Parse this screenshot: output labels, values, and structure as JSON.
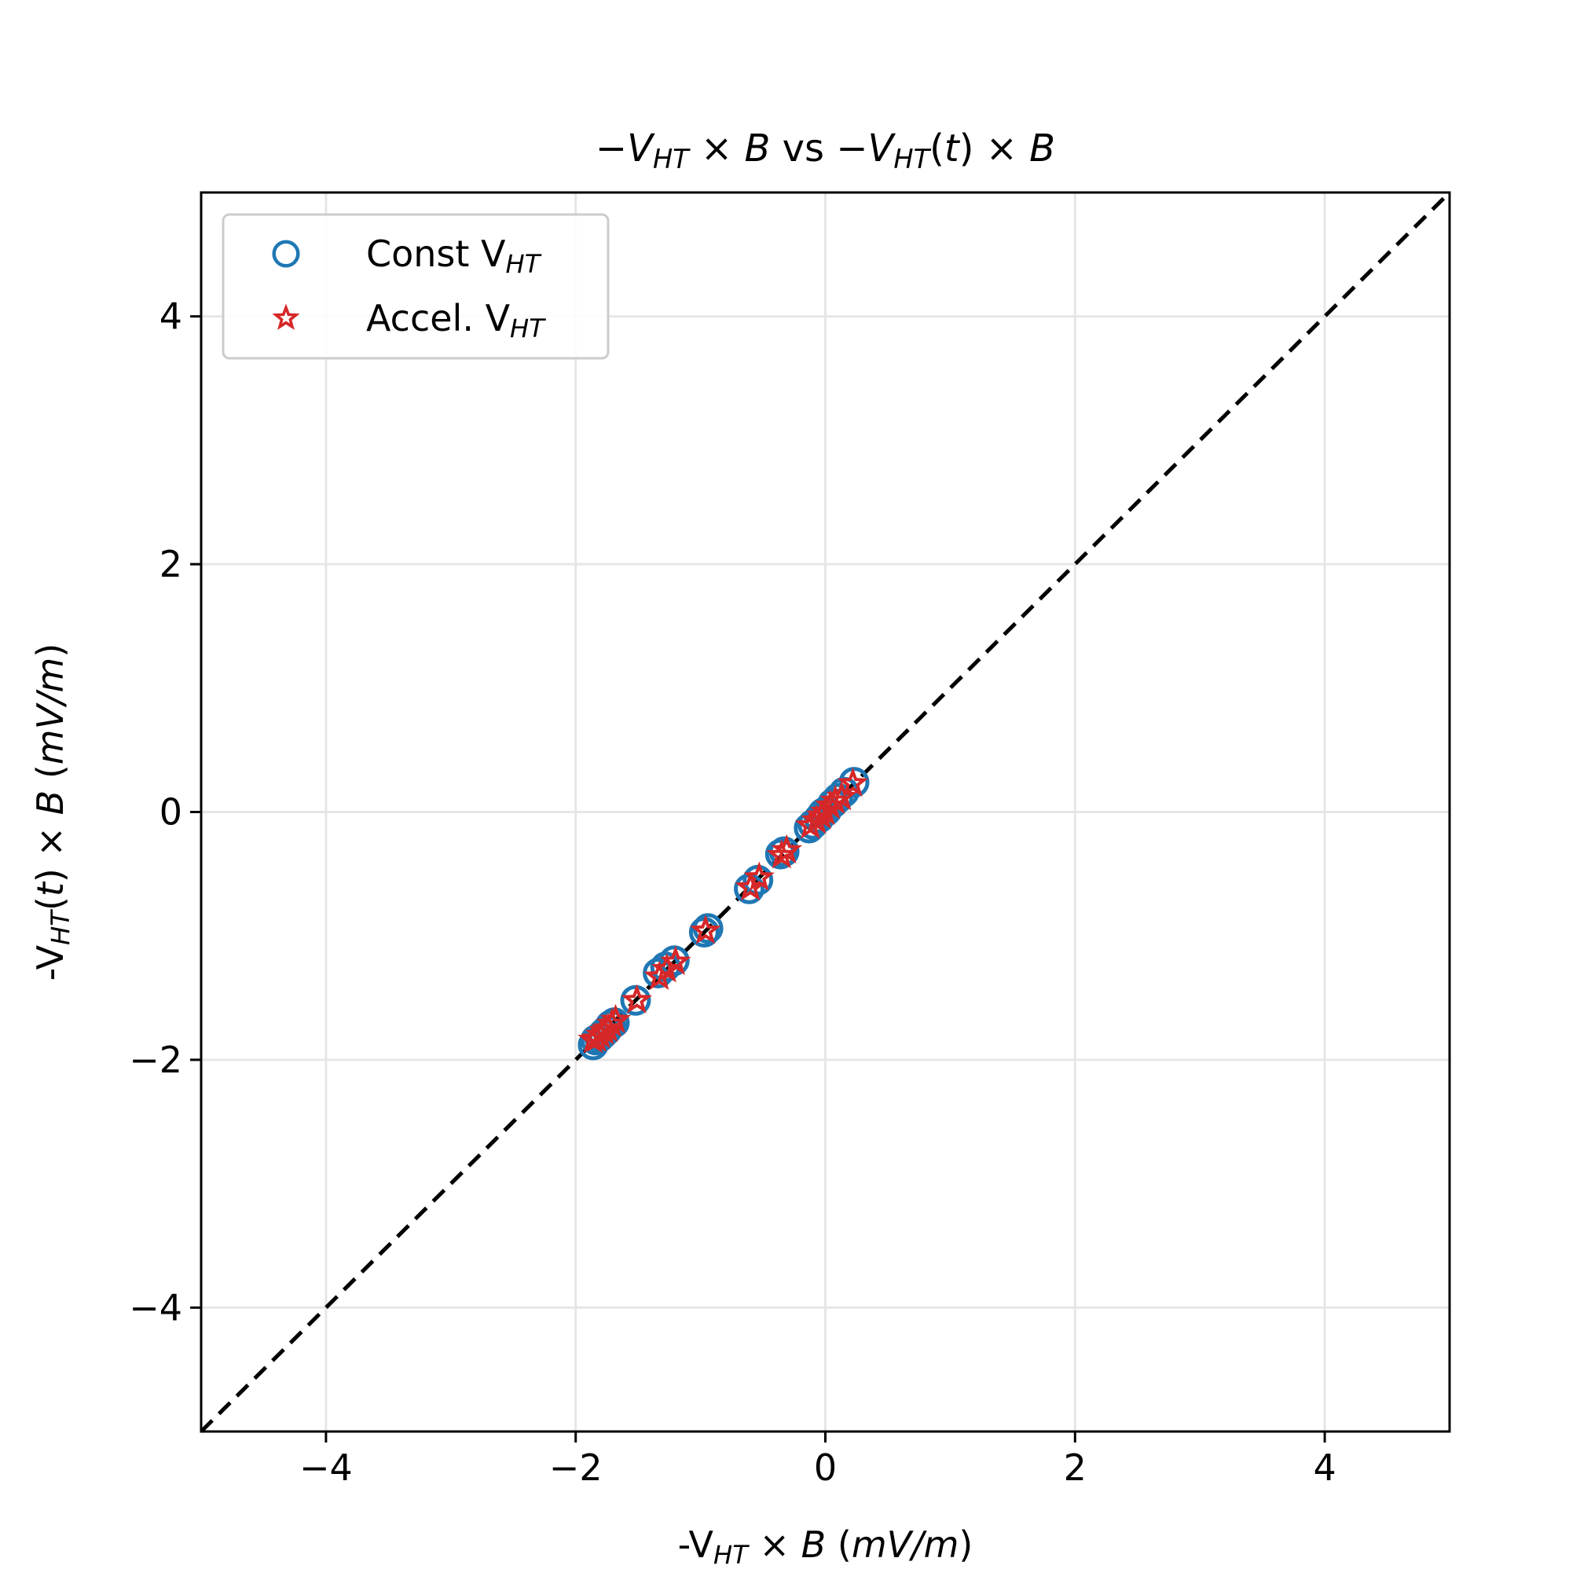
{
  "chart_data": {
    "type": "scatter",
    "title": {
      "parts": [
        {
          "t": "−",
          "i": false
        },
        {
          "t": "V",
          "i": true
        },
        {
          "t": "HT",
          "i": true,
          "sub": true
        },
        {
          "t": " × ",
          "i": false
        },
        {
          "t": "B",
          "i": true
        },
        {
          "t": " vs ",
          "i": false
        },
        {
          "t": "−",
          "i": false
        },
        {
          "t": "V",
          "i": true
        },
        {
          "t": "HT",
          "i": true,
          "sub": true
        },
        {
          "t": "(",
          "i": false
        },
        {
          "t": "t",
          "i": true
        },
        {
          "t": ") × ",
          "i": false
        },
        {
          "t": "B",
          "i": true
        }
      ]
    },
    "xlabel": {
      "parts": [
        {
          "t": "-V",
          "i": false
        },
        {
          "t": "HT",
          "i": true,
          "sub": true
        },
        {
          "t": " × ",
          "i": false
        },
        {
          "t": "B",
          "i": true
        },
        {
          "t": " (",
          "i": false
        },
        {
          "t": "mV/m",
          "i": true
        },
        {
          "t": ")",
          "i": false
        }
      ]
    },
    "ylabel": {
      "parts": [
        {
          "t": "-V",
          "i": false
        },
        {
          "t": "HT",
          "i": true,
          "sub": true
        },
        {
          "t": "(",
          "i": false
        },
        {
          "t": "t",
          "i": true
        },
        {
          "t": ") × ",
          "i": false
        },
        {
          "t": "B",
          "i": true
        },
        {
          "t": " (",
          "i": false
        },
        {
          "t": "mV/m",
          "i": true
        },
        {
          "t": ")",
          "i": false
        }
      ]
    },
    "xlim": [
      -5,
      5
    ],
    "ylim": [
      -5,
      5
    ],
    "xticks": [
      -4,
      -2,
      0,
      2,
      4
    ],
    "yticks": [
      -4,
      -2,
      0,
      2,
      4
    ],
    "xtick_labels": [
      "−4",
      "−2",
      "0",
      "2",
      "4"
    ],
    "ytick_labels": [
      "−4",
      "−2",
      "0",
      "2",
      "4"
    ],
    "grid": true,
    "legend": {
      "placement": "top-left"
    },
    "reference_line": {
      "type": "y=x",
      "style": "dashed",
      "color": "#000000"
    },
    "series": [
      {
        "name": "Const V",
        "name_sub": "HT",
        "marker": "circle-open",
        "color": "#1f77b4",
        "points": [
          [
            -1.86,
            -1.88
          ],
          [
            -1.84,
            -1.84
          ],
          [
            -1.81,
            -1.82
          ],
          [
            -1.78,
            -1.79
          ],
          [
            -1.75,
            -1.76
          ],
          [
            -1.72,
            -1.72
          ],
          [
            -1.69,
            -1.7
          ],
          [
            -1.52,
            -1.52
          ],
          [
            -1.34,
            -1.3
          ],
          [
            -1.28,
            -1.25
          ],
          [
            -1.21,
            -1.2
          ],
          [
            -0.97,
            -0.97
          ],
          [
            -0.94,
            -0.94
          ],
          [
            -0.61,
            -0.62
          ],
          [
            -0.54,
            -0.55
          ],
          [
            -0.36,
            -0.34
          ],
          [
            -0.33,
            -0.32
          ],
          [
            -0.13,
            -0.13
          ],
          [
            -0.1,
            -0.1
          ],
          [
            -0.05,
            -0.05
          ],
          [
            -0.02,
            -0.01
          ],
          [
            0.01,
            0.01
          ],
          [
            0.06,
            0.07
          ],
          [
            0.1,
            0.11
          ],
          [
            0.15,
            0.16
          ],
          [
            0.23,
            0.24
          ]
        ]
      },
      {
        "name": "Accel. V",
        "name_sub": "HT",
        "marker": "star-open",
        "color": "#d62728",
        "points": [
          [
            -1.86,
            -1.84
          ],
          [
            -1.83,
            -1.83
          ],
          [
            -1.8,
            -1.8
          ],
          [
            -1.77,
            -1.77
          ],
          [
            -1.74,
            -1.75
          ],
          [
            -1.71,
            -1.71
          ],
          [
            -1.68,
            -1.68
          ],
          [
            -1.51,
            -1.52
          ],
          [
            -1.33,
            -1.33
          ],
          [
            -1.27,
            -1.27
          ],
          [
            -1.2,
            -1.21
          ],
          [
            -0.96,
            -0.96
          ],
          [
            -0.6,
            -0.61
          ],
          [
            -0.53,
            -0.53
          ],
          [
            -0.35,
            -0.35
          ],
          [
            -0.31,
            -0.31
          ],
          [
            -0.12,
            -0.11
          ],
          [
            -0.07,
            -0.07
          ],
          [
            -0.03,
            -0.03
          ],
          [
            0.0,
            0.0
          ],
          [
            0.04,
            0.05
          ],
          [
            0.08,
            0.09
          ],
          [
            0.13,
            0.12
          ],
          [
            0.22,
            0.23
          ]
        ]
      }
    ]
  }
}
